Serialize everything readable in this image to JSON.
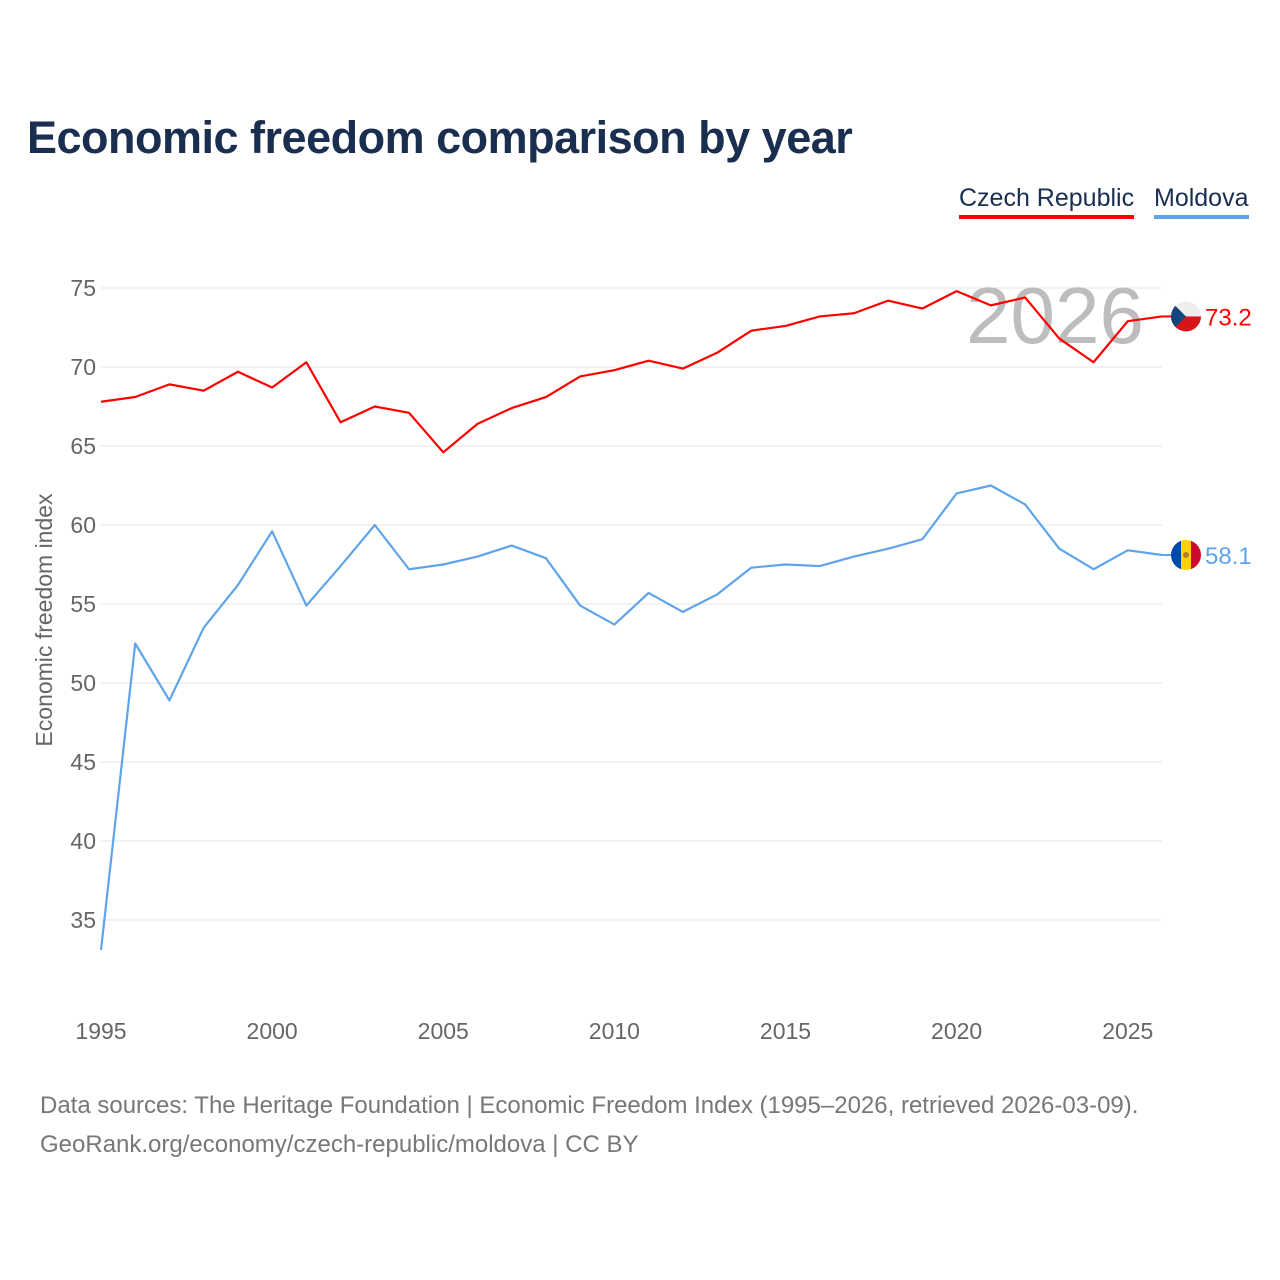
{
  "title": "Economic freedom comparison by year",
  "legend": [
    {
      "label": "Czech Republic",
      "color": "#ff0000"
    },
    {
      "label": "Moldova",
      "color": "#5fa4ea"
    }
  ],
  "footer": {
    "line1": "Data sources: The Heritage Foundation | Economic Freedom Index (1995–2026, retrieved 2026-03-09).",
    "line2": "GeoRank.org/economy/czech-republic/moldova | CC BY"
  },
  "chart_data": {
    "type": "line",
    "title": "Economic freedom comparison by year",
    "ylabel": "Economic freedom index",
    "xlabel": "",
    "year_watermark": "2026",
    "x": [
      1995,
      1996,
      1997,
      1998,
      1999,
      2000,
      2001,
      2002,
      2003,
      2004,
      2005,
      2006,
      2007,
      2008,
      2009,
      2010,
      2011,
      2012,
      2013,
      2014,
      2015,
      2016,
      2017,
      2018,
      2019,
      2020,
      2021,
      2022,
      2023,
      2024,
      2025,
      2026
    ],
    "xlim": [
      1995,
      2026
    ],
    "ylim": [
      30.5,
      77
    ],
    "xticks": [
      1995,
      2000,
      2005,
      2010,
      2015,
      2020,
      2025
    ],
    "yticks": [
      35,
      40,
      45,
      50,
      55,
      60,
      65,
      70,
      75
    ],
    "grid": true,
    "legend_position": "top-right",
    "series": [
      {
        "name": "Czech Republic",
        "color": "#ff0000",
        "end_label": "73.2",
        "flag": "czech-flag",
        "values": [
          67.8,
          68.1,
          68.9,
          68.5,
          69.7,
          68.7,
          70.3,
          66.5,
          67.5,
          67.1,
          64.6,
          66.4,
          67.4,
          68.1,
          69.4,
          69.8,
          70.4,
          69.9,
          70.9,
          72.3,
          72.6,
          73.2,
          73.4,
          74.2,
          73.7,
          74.8,
          73.9,
          74.4,
          71.8,
          70.3,
          72.9,
          73.2
        ]
      },
      {
        "name": "Moldova",
        "color": "#5fa4ea",
        "end_label": "58.1",
        "flag": "moldova-flag",
        "values": [
          33.1,
          52.5,
          48.9,
          53.5,
          56.2,
          59.6,
          54.9,
          57.4,
          60.0,
          57.2,
          57.5,
          58.0,
          58.7,
          57.9,
          54.9,
          53.7,
          55.7,
          54.5,
          55.6,
          57.3,
          57.5,
          57.4,
          58.0,
          58.5,
          59.1,
          62.0,
          62.5,
          61.3,
          58.5,
          57.2,
          58.4,
          58.1
        ]
      }
    ]
  }
}
